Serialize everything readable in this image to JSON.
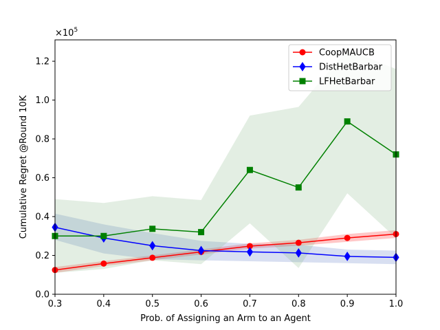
{
  "chart_data": {
    "type": "line",
    "xlabel": "Prob. of Assigning an Arm to an Agent",
    "ylabel": "Cumulative Regret @Round 10K",
    "y_multiplier_label": "×10",
    "y_multiplier_exp": "5",
    "xlim": [
      0.3,
      1.0
    ],
    "ylim": [
      0.0,
      1.31
    ],
    "x_ticks": [
      0.3,
      0.4,
      0.5,
      0.6,
      0.7,
      0.8,
      0.9,
      1.0
    ],
    "x_tick_labels": [
      "0.3",
      "0.4",
      "0.5",
      "0.6",
      "0.7",
      "0.8",
      "0.9",
      "1.0"
    ],
    "y_ticks": [
      0.0,
      0.2,
      0.4,
      0.6,
      0.8,
      1.0,
      1.2
    ],
    "y_tick_labels": [
      "0.0",
      "0.2",
      "0.4",
      "0.6",
      "0.8",
      "1.0",
      "1.2"
    ],
    "grid": false,
    "legend_position": "top-right",
    "x": [
      0.3,
      0.4,
      0.5,
      0.6,
      0.7,
      0.8,
      0.9,
      1.0
    ],
    "series": [
      {
        "name": "CoopMAUCB",
        "color": "#ff0000",
        "band_color": "#ff0000",
        "marker": "circle",
        "values": [
          0.125,
          0.158,
          0.188,
          0.218,
          0.248,
          0.265,
          0.29,
          0.31
        ],
        "lower": [
          0.11,
          0.145,
          0.175,
          0.205,
          0.235,
          0.25,
          0.27,
          0.29
        ],
        "upper": [
          0.14,
          0.171,
          0.2,
          0.231,
          0.262,
          0.28,
          0.31,
          0.33
        ]
      },
      {
        "name": "DistHetBarbar",
        "color": "#0000ff",
        "band_color": "#4f6fbf",
        "marker": "diamond",
        "values": [
          0.345,
          0.29,
          0.25,
          0.225,
          0.218,
          0.213,
          0.195,
          0.19
        ],
        "lower": [
          0.28,
          0.21,
          0.18,
          0.175,
          0.17,
          0.165,
          0.16,
          0.155
        ],
        "upper": [
          0.415,
          0.36,
          0.315,
          0.275,
          0.26,
          0.255,
          0.23,
          0.225
        ]
      },
      {
        "name": "LFHetBarbar",
        "color": "#008000",
        "band_color": "#7fb27f",
        "marker": "square",
        "values": [
          0.3,
          0.3,
          0.337,
          0.32,
          0.64,
          0.55,
          0.89,
          0.72
        ],
        "lower": [
          0.11,
          0.13,
          0.175,
          0.155,
          0.365,
          0.135,
          0.52,
          0.29
        ],
        "upper": [
          0.49,
          0.47,
          0.505,
          0.485,
          0.92,
          0.965,
          1.26,
          1.16
        ]
      }
    ]
  }
}
